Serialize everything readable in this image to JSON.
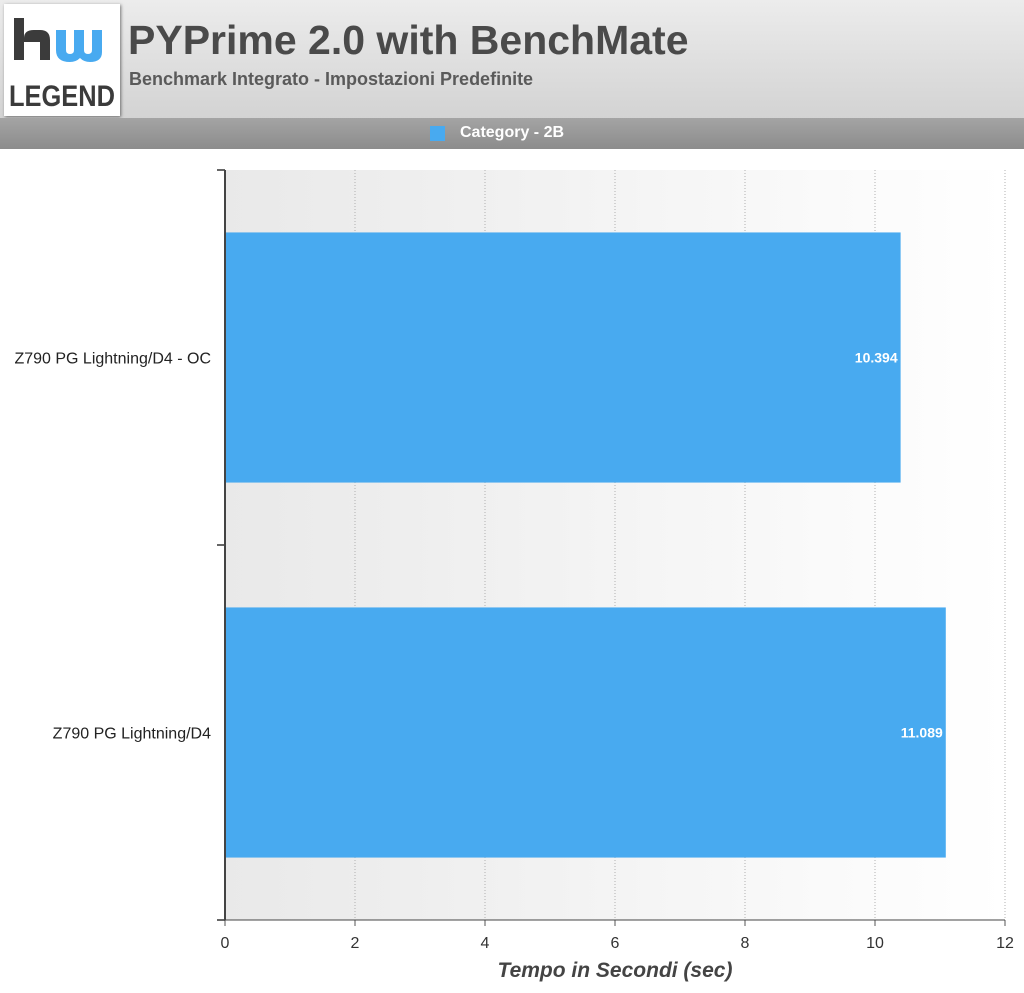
{
  "logo": {
    "mark": "hw",
    "text": "LEGEND"
  },
  "header": {
    "title": "PYPrime 2.0 with BenchMate",
    "subtitle": "Benchmark Integrato - Impostazioni Predefinite"
  },
  "legend": {
    "label": "Category - 2B",
    "color": "#48aaf0"
  },
  "chart_data": {
    "type": "bar",
    "orientation": "horizontal",
    "categories": [
      "Z790 PG Lightning/D4 - OC",
      "Z790 PG Lightning/D4"
    ],
    "series": [
      {
        "name": "Category - 2B",
        "values": [
          10.394,
          11.089
        ],
        "value_labels": [
          "10.394",
          "11.089"
        ],
        "color": "#48aaf0"
      }
    ],
    "xlabel": "Tempo in Secondi (sec)",
    "xlim": [
      0,
      12
    ],
    "xticks": [
      0,
      2,
      4,
      6,
      8,
      10,
      12
    ],
    "grid": "vertical dotted",
    "legend": "top-center"
  }
}
